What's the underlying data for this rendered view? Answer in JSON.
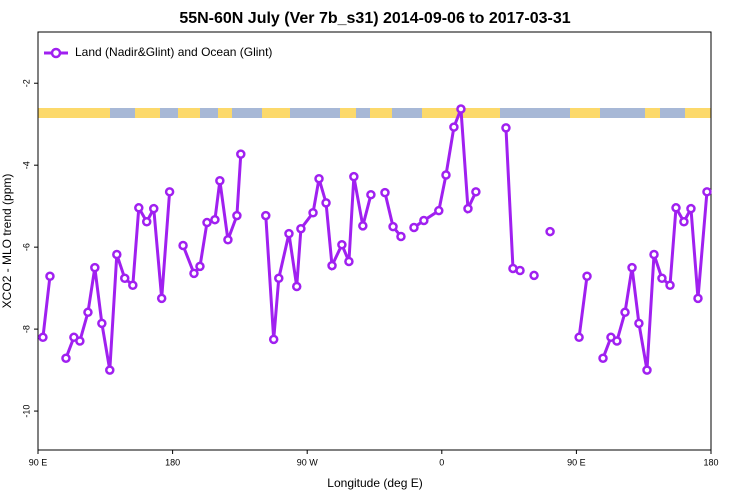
{
  "chart_data": {
    "type": "line",
    "title": "55N-60N July (Ver 7b_s31)   2014-09-06 to 2017-03-31",
    "x_label": "Longitude (deg E)",
    "y_label": "XCO2 - MLO trend (ppm)",
    "xlim": [
      90,
      540
    ],
    "ylim": [
      -10.95,
      -0.75
    ],
    "xticks": [
      {
        "value": 90,
        "label": "90 E"
      },
      180,
      {
        "value": 270,
        "label": "90 W"
      },
      0,
      {
        "value": 450,
        "label": "90 E"
      },
      {
        "value": 540,
        "label": "180"
      }
    ],
    "yticks": [
      -2,
      -4,
      -6,
      -8,
      -10
    ],
    "legend": "top-left",
    "series": [
      {
        "name": "Land (Nadir&Glint) and Ocean (Glint)",
        "color": "#a020f0",
        "x": [
          93.3,
          98,
          null,
          108.7,
          114,
          118,
          123.4,
          128,
          132.7,
          138,
          142.7,
          148,
          153.4,
          157.4,
          162.7,
          167.4,
          172.7,
          178,
          null,
          187,
          194.3,
          198.3,
          203,
          208.3,
          211.6,
          217,
          223,
          225.6,
          null,
          242.3,
          247.6,
          251,
          257.8,
          263,
          265.8,
          273.9,
          277.9,
          282.6,
          286.6,
          293.2,
          297.9,
          301.2,
          307.2,
          312.6,
          null,
          322,
          327.4,
          332.7,
          null,
          341.4,
          348,
          358,
          362.8,
          368.1,
          372.8,
          377.5,
          382.8,
          null,
          402.9,
          407.6,
          412.3,
          null,
          421.7,
          null,
          432.4,
          null,
          451.8,
          457.1,
          null,
          467.8,
          473.1,
          477.1,
          482.5,
          487.2,
          491.8,
          497.2,
          501.9,
          507.2,
          512.6,
          516.6,
          521.9,
          526.6,
          531.3,
          537.3
        ],
        "values": [
          -8.2,
          -6.71,
          null,
          -8.71,
          -8.2,
          -8.29,
          -7.59,
          -6.5,
          -7.86,
          -9.0,
          -6.18,
          -6.76,
          -6.93,
          -5.04,
          -5.38,
          -5.06,
          -7.25,
          -4.65,
          null,
          -5.96,
          -6.64,
          -6.47,
          -5.4,
          -5.33,
          -4.38,
          -5.82,
          -5.23,
          -3.73,
          null,
          -5.23,
          -8.25,
          -6.76,
          -5.67,
          -6.96,
          -5.55,
          -5.16,
          -4.33,
          -4.92,
          -6.45,
          -5.94,
          -6.35,
          -4.28,
          -5.48,
          -4.72,
          null,
          -4.67,
          -5.5,
          -5.74,
          null,
          -5.52,
          -5.35,
          -5.11,
          -4.24,
          -3.07,
          -2.63,
          -5.06,
          -4.65,
          null,
          -3.09,
          -6.52,
          -6.57,
          null,
          -6.69,
          null,
          -5.62,
          null,
          -8.2,
          -6.71,
          null,
          -8.71,
          -8.2,
          -8.29,
          -7.59,
          -6.5,
          -7.86,
          -9.0,
          -6.18,
          -6.76,
          -6.93,
          -5.04,
          -5.38,
          -5.06,
          -7.25,
          -4.65
        ]
      }
    ]
  }
}
